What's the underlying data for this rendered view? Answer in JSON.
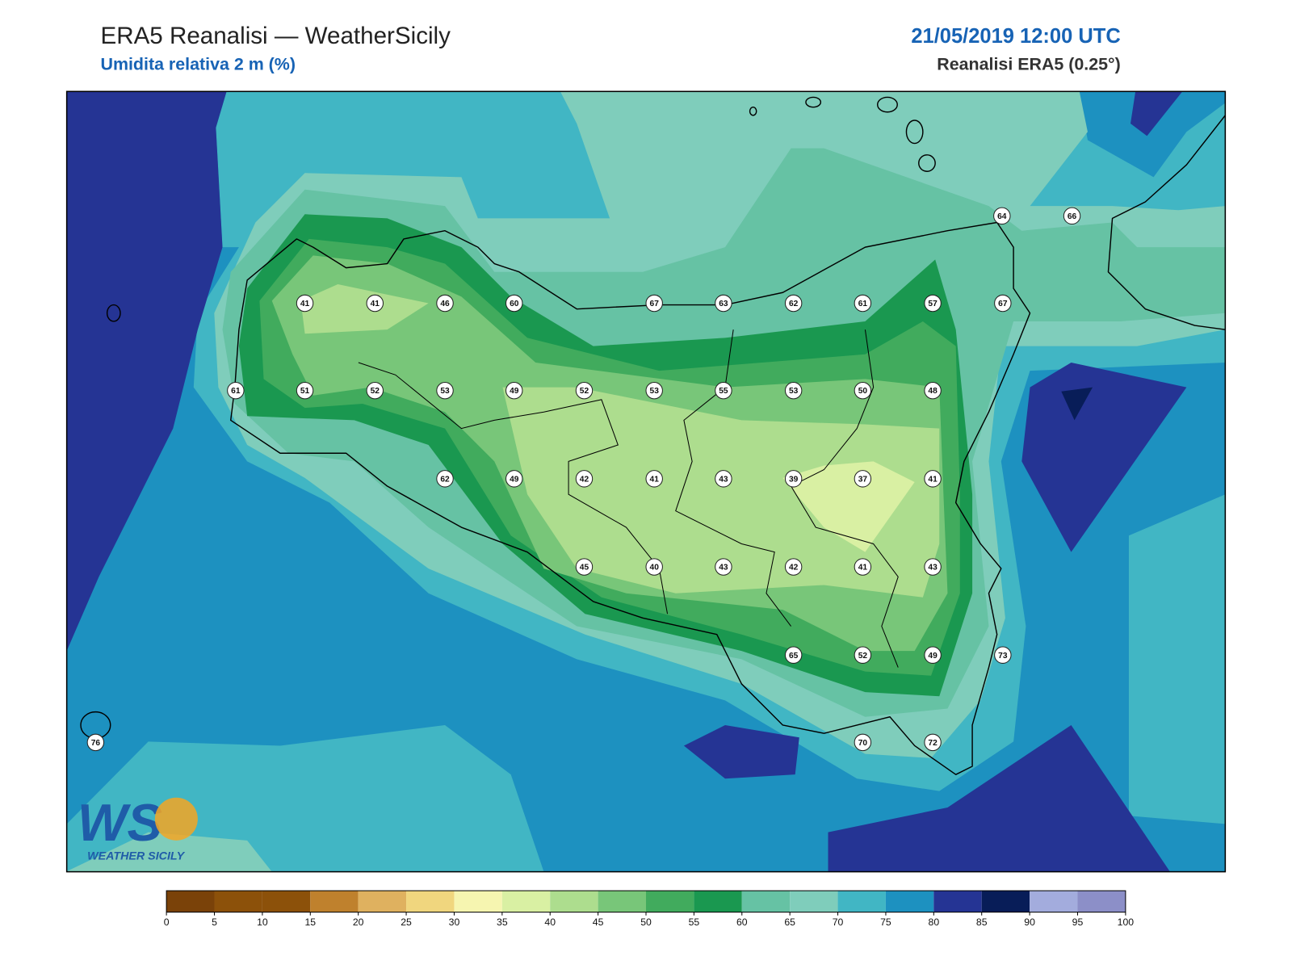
{
  "header": {
    "title": "ERA5 Reanalisi — WeatherSicily",
    "subtitle": "Umidita relativa 2 m (%)",
    "datetime": "21/05/2019 12:00 UTC",
    "source": "Reanalisi ERA5 (0.25°)"
  },
  "stations": {
    "values": [
      41,
      41,
      46,
      60,
      67,
      63,
      62,
      61,
      57,
      67,
      64,
      66,
      61,
      51,
      52,
      53,
      49,
      52,
      53,
      55,
      53,
      50,
      48,
      62,
      49,
      42,
      41,
      43,
      39,
      37,
      41,
      45,
      40,
      43,
      42,
      41,
      43,
      65,
      52,
      49,
      73,
      70,
      72,
      76
    ]
  },
  "colorbar": {
    "levels": [
      0,
      5,
      10,
      15,
      20,
      25,
      30,
      35,
      40,
      45,
      50,
      55,
      60,
      65,
      70,
      75,
      80,
      85,
      90,
      95,
      100
    ],
    "colors": [
      "#7a4209",
      "#8c510a",
      "#8c510a",
      "#bf812d",
      "#dfb15f",
      "#f0d67e",
      "#f6f5b0",
      "#d9f0a3",
      "#addd8e",
      "#78c679",
      "#41ab5d",
      "#1a9850",
      "#66c2a4",
      "#7fcdbb",
      "#41b6c4",
      "#1d91c0",
      "#253494",
      "#081d58",
      "#a3acdd",
      "#8c8fc8"
    ]
  },
  "logo": {
    "mark": "WS",
    "text": "WEATHER SICILY"
  }
}
